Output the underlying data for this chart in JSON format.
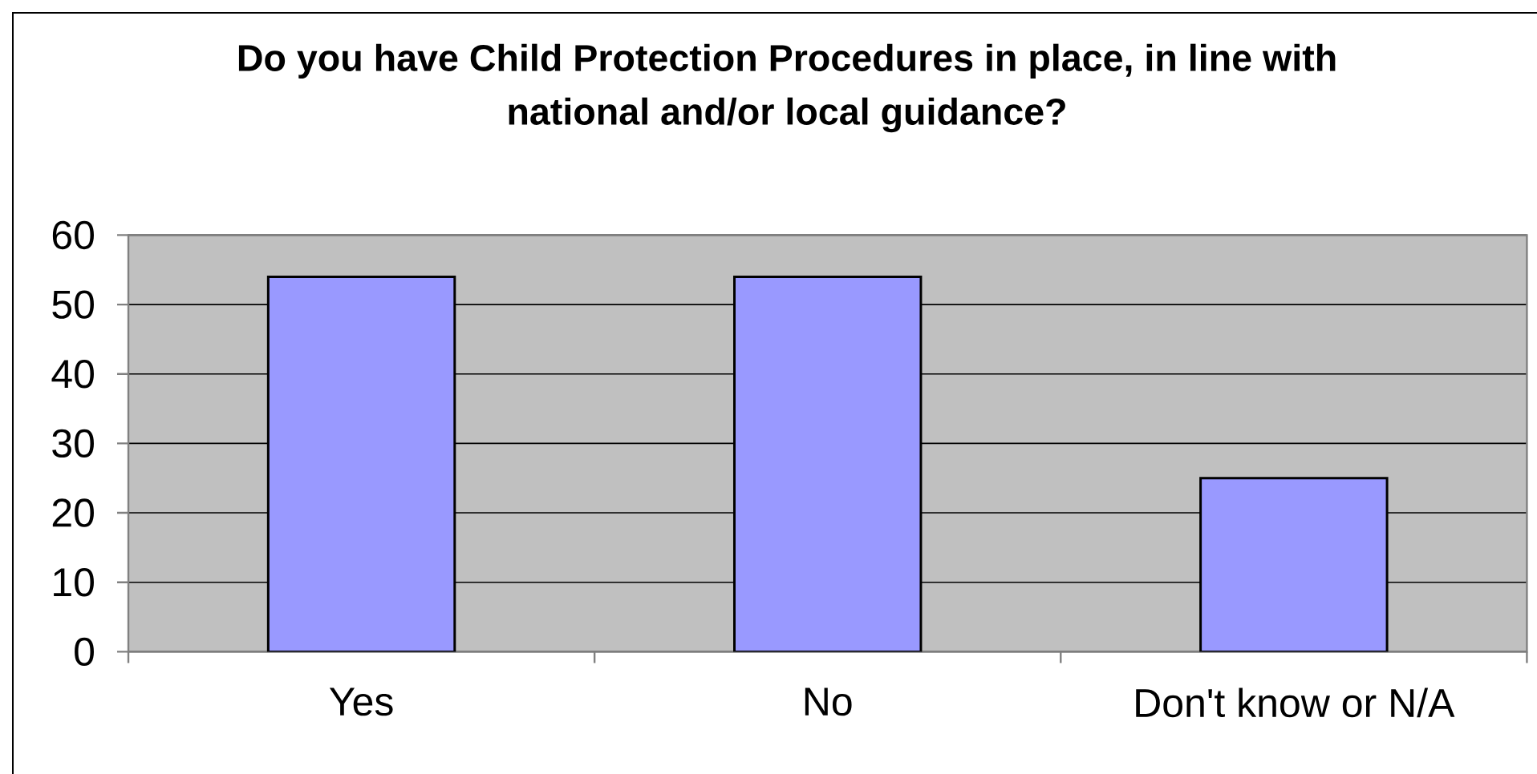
{
  "chart_data": {
    "type": "bar",
    "title": "Do you have Child Protection Procedures in place, in line with national and/or local guidance?",
    "categories": [
      "Yes",
      "No",
      "Don't know or N/A"
    ],
    "values": [
      54,
      54,
      25
    ],
    "color": "#9999ff",
    "ylim": [
      0,
      60
    ],
    "yticks": [
      0,
      10,
      20,
      30,
      40,
      50,
      60
    ],
    "grid": "y"
  }
}
